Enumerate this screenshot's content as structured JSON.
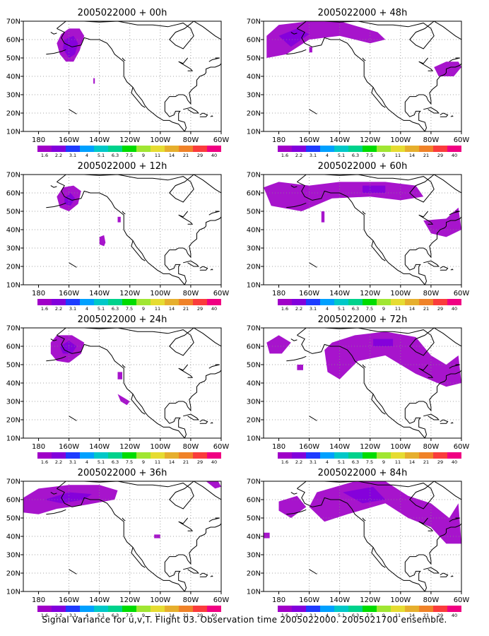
{
  "caption": "Signal Variance for u,v,T. Flight 03. Observation time 2005022000. 2005021700 ensemble.",
  "chart_data": {
    "type": "heatmap",
    "map_region": "North America / North Pacific",
    "xlim": [
      -190,
      -60
    ],
    "ylim": [
      10,
      70
    ],
    "xticks": [
      "180",
      "160W",
      "140W",
      "120W",
      "100W",
      "80W",
      "60W"
    ],
    "yticks": [
      "10N",
      "20N",
      "30N",
      "40N",
      "50N",
      "60N",
      "70N"
    ],
    "colorbar": {
      "levels": [
        "1.6",
        "2.2",
        "3.1",
        "4",
        "5.1",
        "6.3",
        "7.5",
        "9",
        "11",
        "14",
        "21",
        "29",
        "40"
      ],
      "colors": [
        "#a000c8",
        "#8200dc",
        "#1e3cff",
        "#00a0ff",
        "#00c8c8",
        "#00d28c",
        "#00dc00",
        "#a0e632",
        "#e6dc32",
        "#e6af2d",
        "#f08228",
        "#fa3c3c",
        "#f00082"
      ]
    },
    "panels": [
      {
        "title": "2005022000 + 00h",
        "regions": [
          {
            "level": "1.6",
            "lonlat": [
              [
                -165,
                63
              ],
              [
                -160,
                66
              ],
              [
                -153,
                66
              ],
              [
                -150,
                62
              ],
              [
                -153,
                54
              ],
              [
                -157,
                48
              ],
              [
                -162,
                48
              ],
              [
                -166,
                52
              ],
              [
                -168,
                58
              ]
            ]
          },
          {
            "level": "2.2",
            "lonlat": [
              [
                -163,
                60
              ],
              [
                -157,
                62
              ],
              [
                -154,
                58
              ],
              [
                -156,
                52
              ],
              [
                -160,
                50
              ],
              [
                -164,
                55
              ]
            ]
          },
          {
            "level": "1.6",
            "lonlat": [
              [
                -144,
                39
              ],
              [
                -143,
                39
              ],
              [
                -143,
                36
              ],
              [
                -144,
                36
              ]
            ]
          }
        ]
      },
      {
        "title": "2005022000 + 12h",
        "regions": [
          {
            "level": "1.6",
            "lonlat": [
              [
                -168,
                58
              ],
              [
                -164,
                63
              ],
              [
                -157,
                64
              ],
              [
                -152,
                61
              ],
              [
                -154,
                54
              ],
              [
                -160,
                50
              ],
              [
                -166,
                52
              ]
            ]
          },
          {
            "level": "2.2",
            "lonlat": [
              [
                -163,
                57
              ],
              [
                -159,
                60
              ],
              [
                -156,
                57
              ],
              [
                -159,
                53
              ],
              [
                -163,
                54
              ]
            ]
          },
          {
            "level": "1.6",
            "lonlat": [
              [
                -128,
                47
              ],
              [
                -126,
                47
              ],
              [
                -126,
                44
              ],
              [
                -128,
                44
              ]
            ]
          },
          {
            "level": "1.6",
            "lonlat": [
              [
                -140,
                36
              ],
              [
                -137,
                37
              ],
              [
                -136,
                33
              ],
              [
                -137,
                31
              ],
              [
                -140,
                32
              ]
            ]
          }
        ]
      },
      {
        "title": "2005022000 + 24h",
        "regions": [
          {
            "level": "1.6",
            "lonlat": [
              [
                -172,
                62
              ],
              [
                -168,
                66
              ],
              [
                -158,
                66
              ],
              [
                -150,
                62
              ],
              [
                -152,
                56
              ],
              [
                -160,
                51
              ],
              [
                -168,
                52
              ],
              [
                -172,
                56
              ]
            ]
          },
          {
            "level": "2.2",
            "lonlat": [
              [
                -166,
                60
              ],
              [
                -160,
                63
              ],
              [
                -155,
                60
              ],
              [
                -158,
                56
              ],
              [
                -164,
                56
              ]
            ]
          },
          {
            "level": "1.6",
            "lonlat": [
              [
                -128,
                46
              ],
              [
                -125,
                46
              ],
              [
                -125,
                42
              ],
              [
                -128,
                42
              ]
            ]
          },
          {
            "level": "1.6",
            "lonlat": [
              [
                -128,
                34
              ],
              [
                -124,
                32
              ],
              [
                -120,
                30
              ],
              [
                -122,
                28
              ],
              [
                -126,
                30
              ]
            ]
          }
        ]
      },
      {
        "title": "2005022000 + 36h",
        "regions": [
          {
            "level": "1.6",
            "lonlat": [
              [
                -190,
                61
              ],
              [
                -180,
                66
              ],
              [
                -160,
                68
              ],
              [
                -140,
                68
              ],
              [
                -128,
                65
              ],
              [
                -130,
                60
              ],
              [
                -150,
                57
              ],
              [
                -168,
                55
              ],
              [
                -180,
                52
              ],
              [
                -190,
                53
              ]
            ]
          },
          {
            "level": "2.2",
            "lonlat": [
              [
                -176,
                60
              ],
              [
                -160,
                64
              ],
              [
                -145,
                63
              ],
              [
                -150,
                60
              ],
              [
                -165,
                58
              ]
            ]
          },
          {
            "level": "1.6",
            "lonlat": [
              [
                -70,
                70
              ],
              [
                -62,
                70
              ],
              [
                -60,
                67
              ],
              [
                -64,
                66
              ]
            ]
          },
          {
            "level": "1.6",
            "lonlat": [
              [
                -104,
                41
              ],
              [
                -100,
                41
              ],
              [
                -100,
                39
              ],
              [
                -104,
                39
              ]
            ]
          }
        ]
      },
      {
        "title": "2005022000 + 48h",
        "regions": [
          {
            "level": "1.6",
            "lonlat": [
              [
                -188,
                62
              ],
              [
                -180,
                68
              ],
              [
                -160,
                70
              ],
              [
                -140,
                70
              ],
              [
                -115,
                64
              ],
              [
                -110,
                60
              ],
              [
                -120,
                58
              ],
              [
                -140,
                62
              ],
              [
                -160,
                60
              ],
              [
                -175,
                52
              ],
              [
                -188,
                50
              ]
            ]
          },
          {
            "level": "2.2",
            "lonlat": [
              [
                -180,
                62
              ],
              [
                -168,
                66
              ],
              [
                -160,
                63
              ],
              [
                -172,
                56
              ]
            ]
          },
          {
            "level": "1.6",
            "lonlat": [
              [
                -78,
                45
              ],
              [
                -70,
                48
              ],
              [
                -62,
                48
              ],
              [
                -60,
                45
              ],
              [
                -65,
                40
              ],
              [
                -75,
                40
              ]
            ]
          },
          {
            "level": "1.6",
            "lonlat": [
              [
                -160,
                56
              ],
              [
                -158,
                56
              ],
              [
                -158,
                53
              ],
              [
                -160,
                53
              ]
            ]
          }
        ]
      },
      {
        "title": "2005022000 + 60h",
        "regions": [
          {
            "level": "1.6",
            "lonlat": [
              [
                -190,
                63
              ],
              [
                -180,
                66
              ],
              [
                -160,
                64
              ],
              [
                -140,
                66
              ],
              [
                -110,
                66
              ],
              [
                -90,
                64
              ],
              [
                -85,
                58
              ],
              [
                -100,
                56
              ],
              [
                -120,
                58
              ],
              [
                -145,
                57
              ],
              [
                -165,
                50
              ],
              [
                -185,
                53
              ]
            ]
          },
          {
            "level": "2.2",
            "lonlat": [
              [
                -125,
                64
              ],
              [
                -110,
                64
              ],
              [
                -110,
                60
              ],
              [
                -125,
                60
              ]
            ]
          },
          {
            "level": "1.6",
            "lonlat": [
              [
                -85,
                45
              ],
              [
                -70,
                46
              ],
              [
                -62,
                52
              ],
              [
                -60,
                40
              ],
              [
                -70,
                36
              ],
              [
                -80,
                38
              ]
            ]
          },
          {
            "level": "1.6",
            "lonlat": [
              [
                -152,
                50
              ],
              [
                -150,
                50
              ],
              [
                -150,
                44
              ],
              [
                -152,
                44
              ]
            ]
          }
        ]
      },
      {
        "title": "2005022000 + 72h",
        "regions": [
          {
            "level": "1.6",
            "lonlat": [
              [
                -188,
                62
              ],
              [
                -180,
                66
              ],
              [
                -172,
                62
              ],
              [
                -178,
                56
              ],
              [
                -186,
                56
              ]
            ]
          },
          {
            "level": "1.6",
            "lonlat": [
              [
                -145,
                62
              ],
              [
                -130,
                66
              ],
              [
                -110,
                68
              ],
              [
                -90,
                65
              ],
              [
                -80,
                55
              ],
              [
                -70,
                50
              ],
              [
                -62,
                55
              ],
              [
                -60,
                40
              ],
              [
                -70,
                38
              ],
              [
                -90,
                45
              ],
              [
                -110,
                55
              ],
              [
                -128,
                52
              ],
              [
                -140,
                42
              ],
              [
                -148,
                46
              ],
              [
                -150,
                58
              ]
            ]
          },
          {
            "level": "2.2",
            "lonlat": [
              [
                -118,
                64
              ],
              [
                -105,
                64
              ],
              [
                -105,
                60
              ],
              [
                -118,
                60
              ]
            ]
          },
          {
            "level": "1.6",
            "lonlat": [
              [
                -168,
                50
              ],
              [
                -164,
                50
              ],
              [
                -164,
                47
              ],
              [
                -168,
                47
              ]
            ]
          }
        ]
      },
      {
        "title": "2005022000 + 84h",
        "regions": [
          {
            "level": "1.6",
            "lonlat": [
              [
                -180,
                59
              ],
              [
                -168,
                62
              ],
              [
                -162,
                56
              ],
              [
                -172,
                50
              ],
              [
                -180,
                54
              ]
            ]
          },
          {
            "level": "1.6",
            "lonlat": [
              [
                -155,
                64
              ],
              [
                -130,
                70
              ],
              [
                -110,
                70
              ],
              [
                -95,
                62
              ],
              [
                -80,
                58
              ],
              [
                -68,
                50
              ],
              [
                -62,
                58
              ],
              [
                -60,
                36
              ],
              [
                -70,
                36
              ],
              [
                -80,
                45
              ],
              [
                -95,
                50
              ],
              [
                -110,
                58
              ],
              [
                -135,
                52
              ],
              [
                -150,
                48
              ],
              [
                -160,
                56
              ]
            ]
          },
          {
            "level": "2.2",
            "lonlat": [
              [
                -138,
                64
              ],
              [
                -118,
                67
              ],
              [
                -110,
                60
              ],
              [
                -125,
                58
              ]
            ]
          },
          {
            "level": "1.6",
            "lonlat": [
              [
                -190,
                42
              ],
              [
                -186,
                42
              ],
              [
                -186,
                39
              ],
              [
                -190,
                39
              ]
            ]
          }
        ]
      }
    ]
  }
}
